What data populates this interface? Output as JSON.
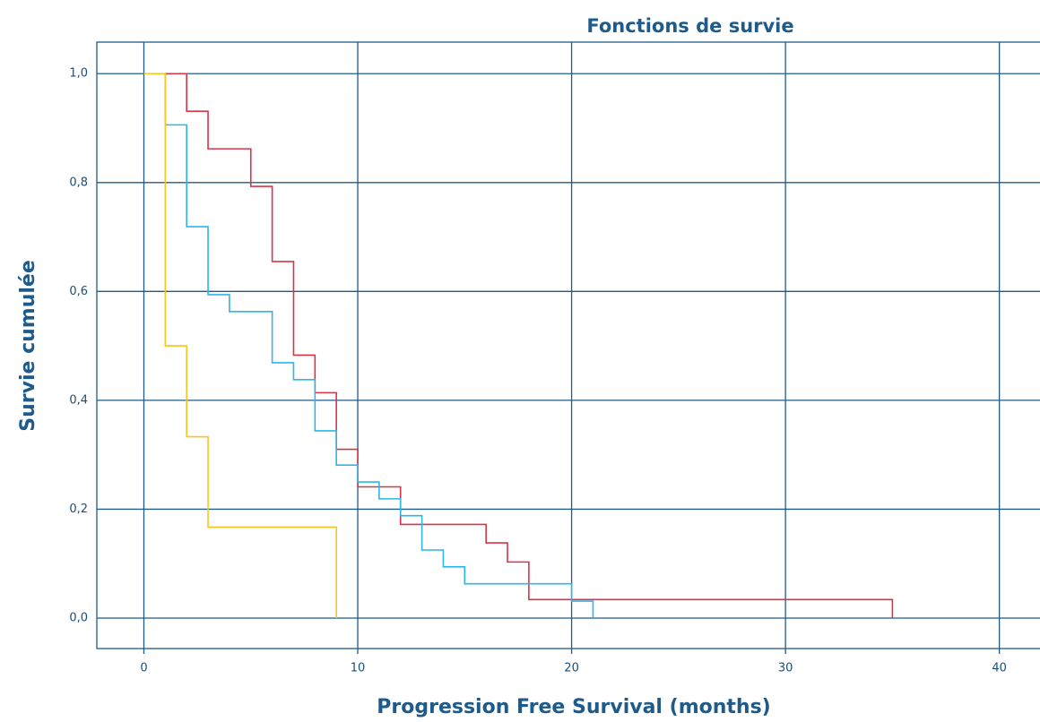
{
  "chart_data": {
    "type": "step",
    "title": "Fonctions de survie",
    "x_label": "Progression Free Survival (months)",
    "y_label": "Survie cumulée",
    "xlim": [
      -2.2,
      41.9
    ],
    "ylim": [
      -0.056,
      1.058
    ],
    "xticks": [
      0,
      10,
      20,
      30,
      40
    ],
    "yticks": [
      {
        "value": 0,
        "label": "0,0"
      },
      {
        "value": 0.2,
        "label": "0,2"
      },
      {
        "value": 0.4,
        "label": "0,4"
      },
      {
        "value": 0.6,
        "label": "0,6"
      },
      {
        "value": 0.8,
        "label": "0,8"
      },
      {
        "value": 1,
        "label": "1,0"
      }
    ],
    "grid": true,
    "series": [
      {
        "color": "#d83447",
        "x": [
          0,
          2,
          3,
          5,
          6,
          7,
          8,
          9,
          10,
          12,
          16,
          17,
          18,
          35
        ],
        "values": [
          1,
          0.931,
          0.862,
          0.793,
          0.655,
          0.483,
          0.414,
          0.31,
          0.241,
          0.172,
          0.138,
          0.103,
          0.034,
          0
        ]
      },
      {
        "color": "#2cb6ea",
        "x": [
          0,
          1,
          2,
          3,
          4,
          6,
          7,
          8,
          9,
          10,
          11,
          12,
          13,
          14,
          15,
          20,
          21
        ],
        "values": [
          1,
          0.906,
          0.719,
          0.594,
          0.563,
          0.469,
          0.438,
          0.344,
          0.281,
          0.25,
          0.219,
          0.188,
          0.125,
          0.094,
          0.063,
          0.031,
          0
        ]
      },
      {
        "color": "#f7c51c",
        "x": [
          0,
          1,
          2,
          3,
          9
        ],
        "values": [
          1,
          0.5,
          0.333,
          0.167,
          0
        ]
      }
    ]
  }
}
